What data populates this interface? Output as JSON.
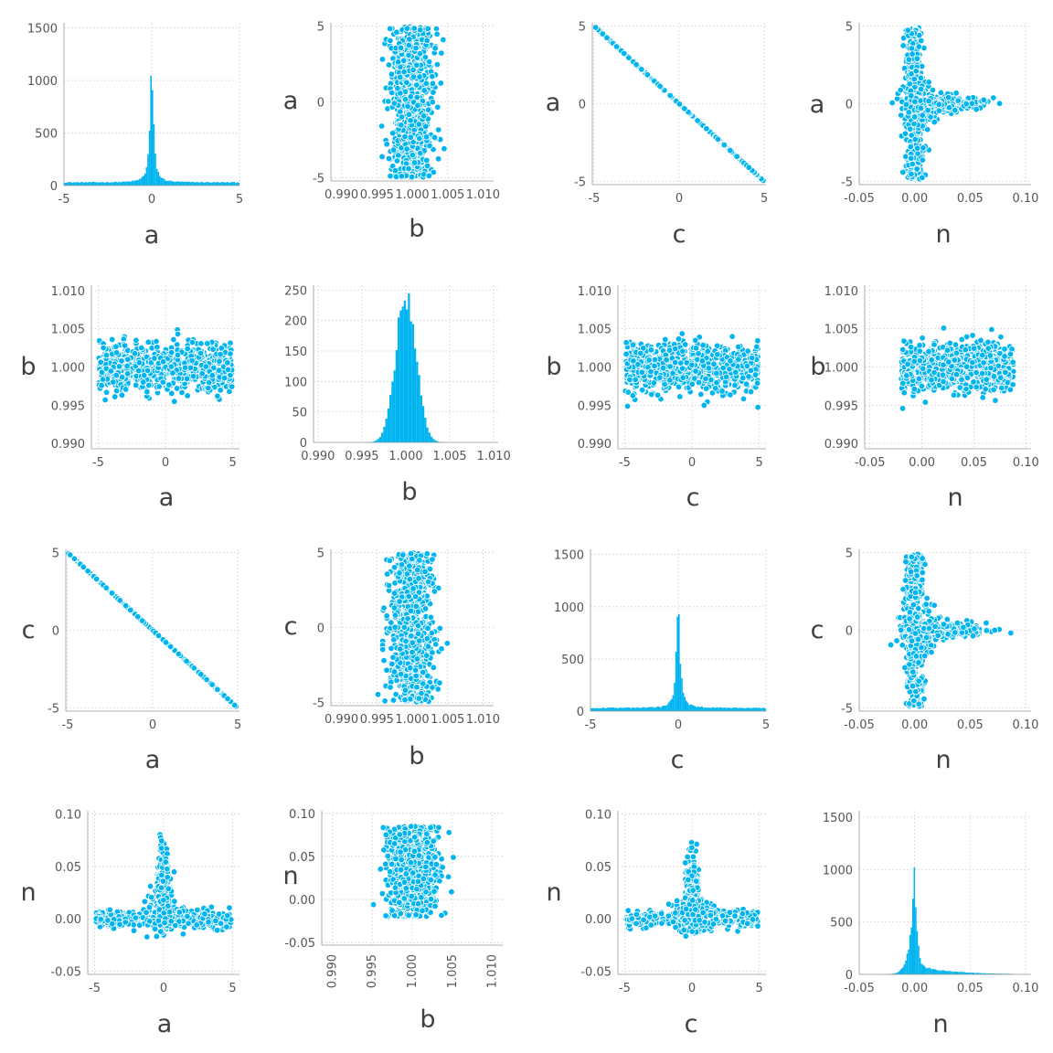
{
  "figure": {
    "variables": [
      "a",
      "b",
      "c",
      "n"
    ],
    "colors": {
      "marker": "#00b4f0",
      "marker_edge": "#ffffff",
      "grid": "#d8d8d8",
      "text": "#404040"
    }
  },
  "chart_data": [
    {
      "id": "p11",
      "type": "bar",
      "title": "",
      "xlabel": "a",
      "ylabel": "",
      "xlim": [
        -5,
        5
      ],
      "ylim": [
        0,
        1550
      ],
      "xticks": [
        -5,
        0,
        5
      ],
      "yticks": [
        0,
        500,
        1000,
        1500
      ],
      "dist": "cauchy",
      "center": 0,
      "scale": 0.12,
      "peak": 1050,
      "floor": 30,
      "grid": true
    },
    {
      "id": "p12",
      "type": "scatter",
      "title": "",
      "xlabel": "b",
      "ylabel": "a",
      "xlim": [
        0.9885,
        1.0115
      ],
      "ylim": [
        -5.2,
        5.2
      ],
      "xticks": [
        0.99,
        0.995,
        1.0,
        1.005,
        1.01
      ],
      "yticks": [
        -5,
        0,
        5
      ],
      "gen": "ab",
      "grid": true
    },
    {
      "id": "p13",
      "type": "scatter",
      "title": "",
      "xlabel": "c",
      "ylabel": "a",
      "xlim": [
        -5.1,
        5.1
      ],
      "ylim": [
        -5.2,
        5.2
      ],
      "xticks": [
        -5,
        0,
        5
      ],
      "yticks": [
        -5,
        0,
        5
      ],
      "gen": "ac",
      "grid": true
    },
    {
      "id": "p14",
      "type": "scatter",
      "title": "",
      "xlabel": "n",
      "ylabel": "a",
      "xlim": [
        -0.05,
        0.105
      ],
      "ylim": [
        -5.2,
        5.2
      ],
      "xticks": [
        -0.05,
        0.0,
        0.05,
        0.1
      ],
      "yticks": [
        -5,
        0,
        5
      ],
      "gen": "an",
      "grid": true
    },
    {
      "id": "p21",
      "type": "scatter",
      "title": "",
      "xlabel": "a",
      "ylabel": "b",
      "xlim": [
        -5.5,
        5.5
      ],
      "ylim": [
        0.9893,
        1.0107
      ],
      "xticks": [
        -5,
        0,
        5
      ],
      "yticks": [
        0.99,
        0.995,
        1.0,
        1.005,
        1.01
      ],
      "gen": "ba",
      "grid": true
    },
    {
      "id": "p22",
      "type": "bar",
      "title": "",
      "xlabel": "b",
      "ylabel": "",
      "xlim": [
        0.9895,
        1.0105
      ],
      "ylim": [
        0,
        258
      ],
      "xticks": [
        0.99,
        0.995,
        1.0,
        1.005,
        1.01
      ],
      "yticks": [
        0,
        50,
        100,
        150,
        200,
        250
      ],
      "dist": "normal",
      "center": 1.0,
      "scale": 0.00115,
      "peak": 242,
      "floor": 0,
      "grid": true
    },
    {
      "id": "p23",
      "type": "scatter",
      "title": "",
      "xlabel": "c",
      "ylabel": "b",
      "xlim": [
        -5.5,
        5.5
      ],
      "ylim": [
        0.9893,
        1.0107
      ],
      "xticks": [
        -5,
        0,
        5
      ],
      "yticks": [
        0.99,
        0.995,
        1.0,
        1.005,
        1.01
      ],
      "gen": "bc",
      "grid": true
    },
    {
      "id": "p24",
      "type": "scatter",
      "title": "",
      "xlabel": "n",
      "ylabel": "b",
      "xlim": [
        -0.055,
        0.105
      ],
      "ylim": [
        0.9893,
        1.0107
      ],
      "xticks": [
        -0.05,
        0.0,
        0.05,
        0.1
      ],
      "yticks": [
        0.99,
        0.995,
        1.0,
        1.005,
        1.01
      ],
      "gen": "bn",
      "grid": true
    },
    {
      "id": "p31",
      "type": "scatter",
      "title": "",
      "xlabel": "a",
      "ylabel": "c",
      "xlim": [
        -5.1,
        5.1
      ],
      "ylim": [
        -5.2,
        5.2
      ],
      "xticks": [
        -5,
        0,
        5
      ],
      "yticks": [
        -5,
        0,
        5
      ],
      "gen": "ca",
      "grid": true
    },
    {
      "id": "p32",
      "type": "scatter",
      "title": "",
      "xlabel": "b",
      "ylabel": "c",
      "xlim": [
        0.9885,
        1.0115
      ],
      "ylim": [
        -5.2,
        5.2
      ],
      "xticks": [
        0.99,
        0.995,
        1.0,
        1.005,
        1.01
      ],
      "yticks": [
        -5,
        0,
        5
      ],
      "gen": "cb",
      "grid": true
    },
    {
      "id": "p33",
      "type": "bar",
      "title": "",
      "xlabel": "c",
      "ylabel": "",
      "xlim": [
        -5,
        5
      ],
      "ylim": [
        0,
        1550
      ],
      "xticks": [
        -5,
        0,
        5
      ],
      "yticks": [
        0,
        500,
        1000,
        1500
      ],
      "dist": "cauchy",
      "center": 0,
      "scale": 0.12,
      "peak": 1050,
      "floor": 30,
      "grid": true
    },
    {
      "id": "p34",
      "type": "scatter",
      "title": "",
      "xlabel": "n",
      "ylabel": "c",
      "xlim": [
        -0.05,
        0.105
      ],
      "ylim": [
        -5.2,
        5.2
      ],
      "xticks": [
        -0.05,
        0.0,
        0.05,
        0.1
      ],
      "yticks": [
        -5,
        0,
        5
      ],
      "gen": "cn",
      "grid": true
    },
    {
      "id": "p41",
      "type": "scatter",
      "title": "",
      "xlabel": "a",
      "ylabel": "n",
      "xlim": [
        -5.5,
        5.5
      ],
      "ylim": [
        -0.053,
        0.103
      ],
      "xticks": [
        -5,
        0,
        5
      ],
      "yticks": [
        -0.05,
        0.0,
        0.05,
        0.1
      ],
      "gen": "na",
      "grid": true
    },
    {
      "id": "p42",
      "type": "scatter",
      "title": "",
      "xlabel": "b",
      "ylabel": "n",
      "xlim": [
        0.9887,
        1.0113
      ],
      "ylim": [
        -0.053,
        0.103
      ],
      "xticks": [
        0.99,
        0.995,
        1.0,
        1.005,
        1.01
      ],
      "yticks": [
        -0.05,
        0.0,
        0.05,
        0.1
      ],
      "gen": "nb",
      "rotate_xticks": true,
      "grid": true
    },
    {
      "id": "p43",
      "type": "scatter",
      "title": "",
      "xlabel": "c",
      "ylabel": "n",
      "xlim": [
        -5.5,
        5.5
      ],
      "ylim": [
        -0.053,
        0.103
      ],
      "xticks": [
        -5,
        0,
        5
      ],
      "yticks": [
        -0.05,
        0.0,
        0.05,
        0.1
      ],
      "gen": "nc",
      "grid": true
    },
    {
      "id": "p44",
      "type": "bar",
      "title": "",
      "xlabel": "n",
      "ylabel": "",
      "xlim": [
        -0.05,
        0.105
      ],
      "ylim": [
        0,
        1560
      ],
      "xticks": [
        -0.05,
        0.0,
        0.05,
        0.1
      ],
      "yticks": [
        0,
        500,
        1000,
        1500
      ],
      "dist": "skew",
      "center": 0.0,
      "scale": 0.002,
      "peak": 1010,
      "floor": 0,
      "grid": true
    }
  ]
}
